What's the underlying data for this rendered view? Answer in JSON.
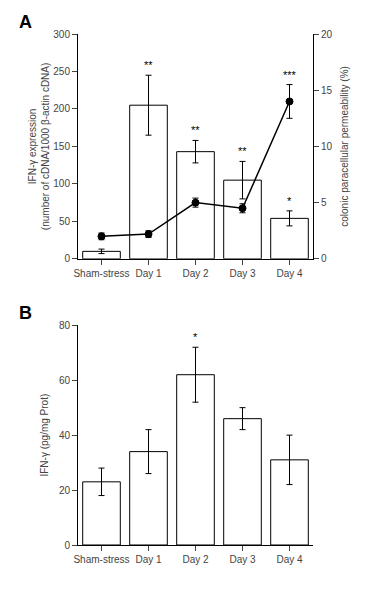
{
  "chart_data": [
    {
      "type": "bar",
      "title": "A",
      "categories": [
        "Sham-stress",
        "Day 1",
        "Day 2",
        "Day 3",
        "Day 4"
      ],
      "ylabel": "IFN-γ expression\n(number of cDNA/1000 β-actin cDNA)",
      "y2label": "colonic paracellular permeability (%)",
      "ylim": [
        0,
        300
      ],
      "yticks": [
        0,
        50,
        100,
        150,
        200,
        250,
        300
      ],
      "y2lim": [
        0,
        20
      ],
      "y2ticks": [
        0,
        5,
        10,
        15,
        20
      ],
      "grid": false,
      "series": [
        {
          "type": "bar",
          "color": "white",
          "values": [
            10,
            205,
            143,
            105,
            54
          ],
          "errors": [
            3,
            40,
            15,
            25,
            10
          ],
          "significance": [
            null,
            "**",
            "**",
            "**",
            "*"
          ]
        },
        {
          "type": "line",
          "axis": "y2",
          "color": "black",
          "marker": "circle",
          "values": [
            2.0,
            2.2,
            5.0,
            4.5,
            14.0
          ],
          "errors": [
            0.3,
            0.3,
            0.4,
            0.4,
            1.5
          ],
          "significance": [
            null,
            null,
            null,
            null,
            "***"
          ]
        }
      ]
    },
    {
      "type": "bar",
      "title": "B",
      "categories": [
        "Sham-stress",
        "Day 1",
        "Day 2",
        "Day 3",
        "Day 4"
      ],
      "ylabel": "IFN-γ (pg/mg Prot)",
      "ylim": [
        0,
        80
      ],
      "yticks": [
        0,
        20,
        40,
        60,
        80
      ],
      "grid": false,
      "series": [
        {
          "type": "bar",
          "color": "white",
          "values": [
            23,
            34,
            62,
            46,
            31
          ],
          "errors": [
            5,
            8,
            10,
            4,
            9
          ],
          "significance": [
            null,
            null,
            "*",
            null,
            null
          ]
        }
      ]
    }
  ]
}
